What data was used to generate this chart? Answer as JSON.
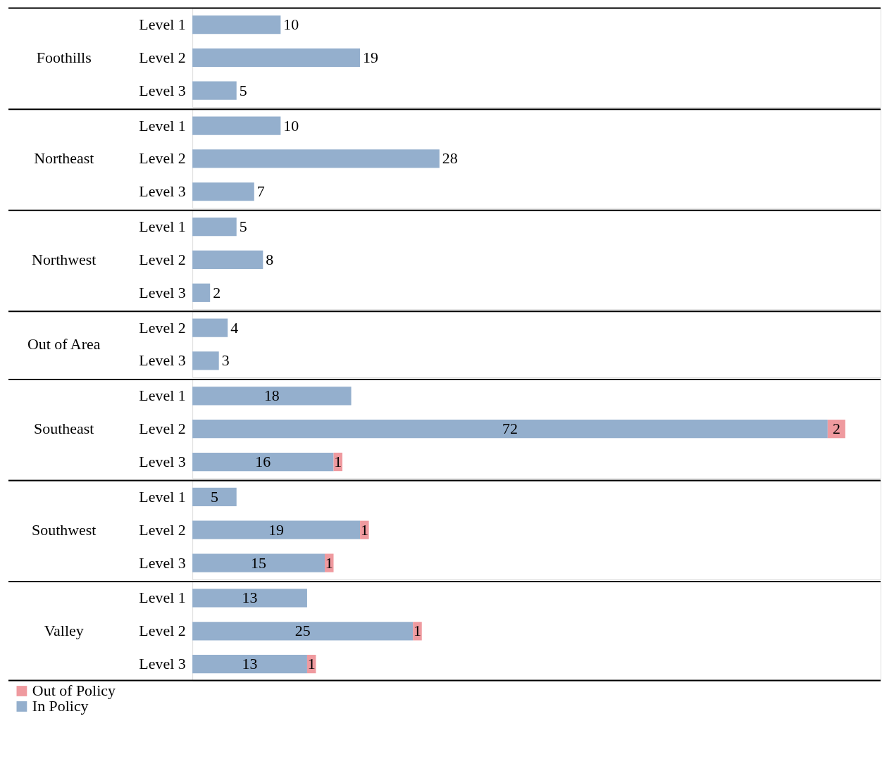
{
  "chart_data": [
    {
      "type": "bar",
      "orientation": "horizontal",
      "stacked": true,
      "title": "Foothills",
      "categories": [
        "Level 1",
        "Level 2",
        "Level 3"
      ],
      "xlim": [
        0,
        78
      ],
      "tick_labels": "y",
      "data_labels": true,
      "series": [
        {
          "color": "#94afcd",
          "values": [
            10,
            19,
            5
          ]
        }
      ]
    },
    {
      "type": "bar",
      "orientation": "horizontal",
      "stacked": true,
      "title": "Northeast",
      "categories": [
        "Level 1",
        "Level 2",
        "Level 3"
      ],
      "xlim": [
        0,
        78
      ],
      "tick_labels": "y",
      "data_labels": true,
      "series": [
        {
          "color": "#94afcd",
          "values": [
            10,
            28,
            7
          ]
        }
      ]
    },
    {
      "type": "bar",
      "orientation": "horizontal",
      "stacked": true,
      "title": "Northwest",
      "categories": [
        "Level 1",
        "Level 2",
        "Level 3"
      ],
      "xlim": [
        0,
        78
      ],
      "tick_labels": "y",
      "data_labels": true,
      "series": [
        {
          "color": "#94afcd",
          "values": [
            5,
            8,
            2
          ]
        }
      ]
    },
    {
      "type": "bar",
      "orientation": "horizontal",
      "stacked": true,
      "title": "Out of Area",
      "categories": [
        "Level 2",
        "Level 3"
      ],
      "xlim": [
        0,
        78
      ],
      "tick_labels": "y",
      "data_labels": true,
      "series": [
        {
          "color": "#94afcd",
          "values": [
            4,
            3
          ]
        }
      ]
    },
    {
      "type": "bar",
      "orientation": "horizontal",
      "stacked": true,
      "title": "Southeast",
      "categories": [
        "Level 1",
        "Level 2",
        "Level 3"
      ],
      "xlim": [
        0,
        78
      ],
      "tick_labels": "y",
      "data_labels": true,
      "series": [
        {
          "color": "#94afcd",
          "values": [
            18,
            72,
            16
          ]
        },
        {
          "color": "#ef9a9f",
          "values": [
            null,
            2,
            1
          ]
        }
      ]
    },
    {
      "type": "bar",
      "orientation": "horizontal",
      "stacked": true,
      "title": "Southwest",
      "categories": [
        "Level 1",
        "Level 2",
        "Level 3"
      ],
      "xlim": [
        0,
        78
      ],
      "tick_labels": "y",
      "data_labels": true,
      "series": [
        {
          "color": "#94afcd",
          "values": [
            5,
            19,
            15
          ]
        },
        {
          "color": "#ef9a9f",
          "values": [
            null,
            1,
            1
          ]
        }
      ]
    },
    {
      "type": "bar",
      "orientation": "horizontal",
      "stacked": true,
      "title": "Valley",
      "categories": [
        "Level 1",
        "Level 2",
        "Level 3"
      ],
      "xlim": [
        0,
        78
      ],
      "tick_labels": "y",
      "data_labels": true,
      "legend": "bottom left",
      "series": [
        {
          "name": "In Policy",
          "color": "#94afcd",
          "values": [
            13,
            25,
            13
          ]
        },
        {
          "name": "Out of Policy",
          "color": "#ef9a9f",
          "values": [
            null,
            1,
            1
          ]
        }
      ]
    }
  ]
}
